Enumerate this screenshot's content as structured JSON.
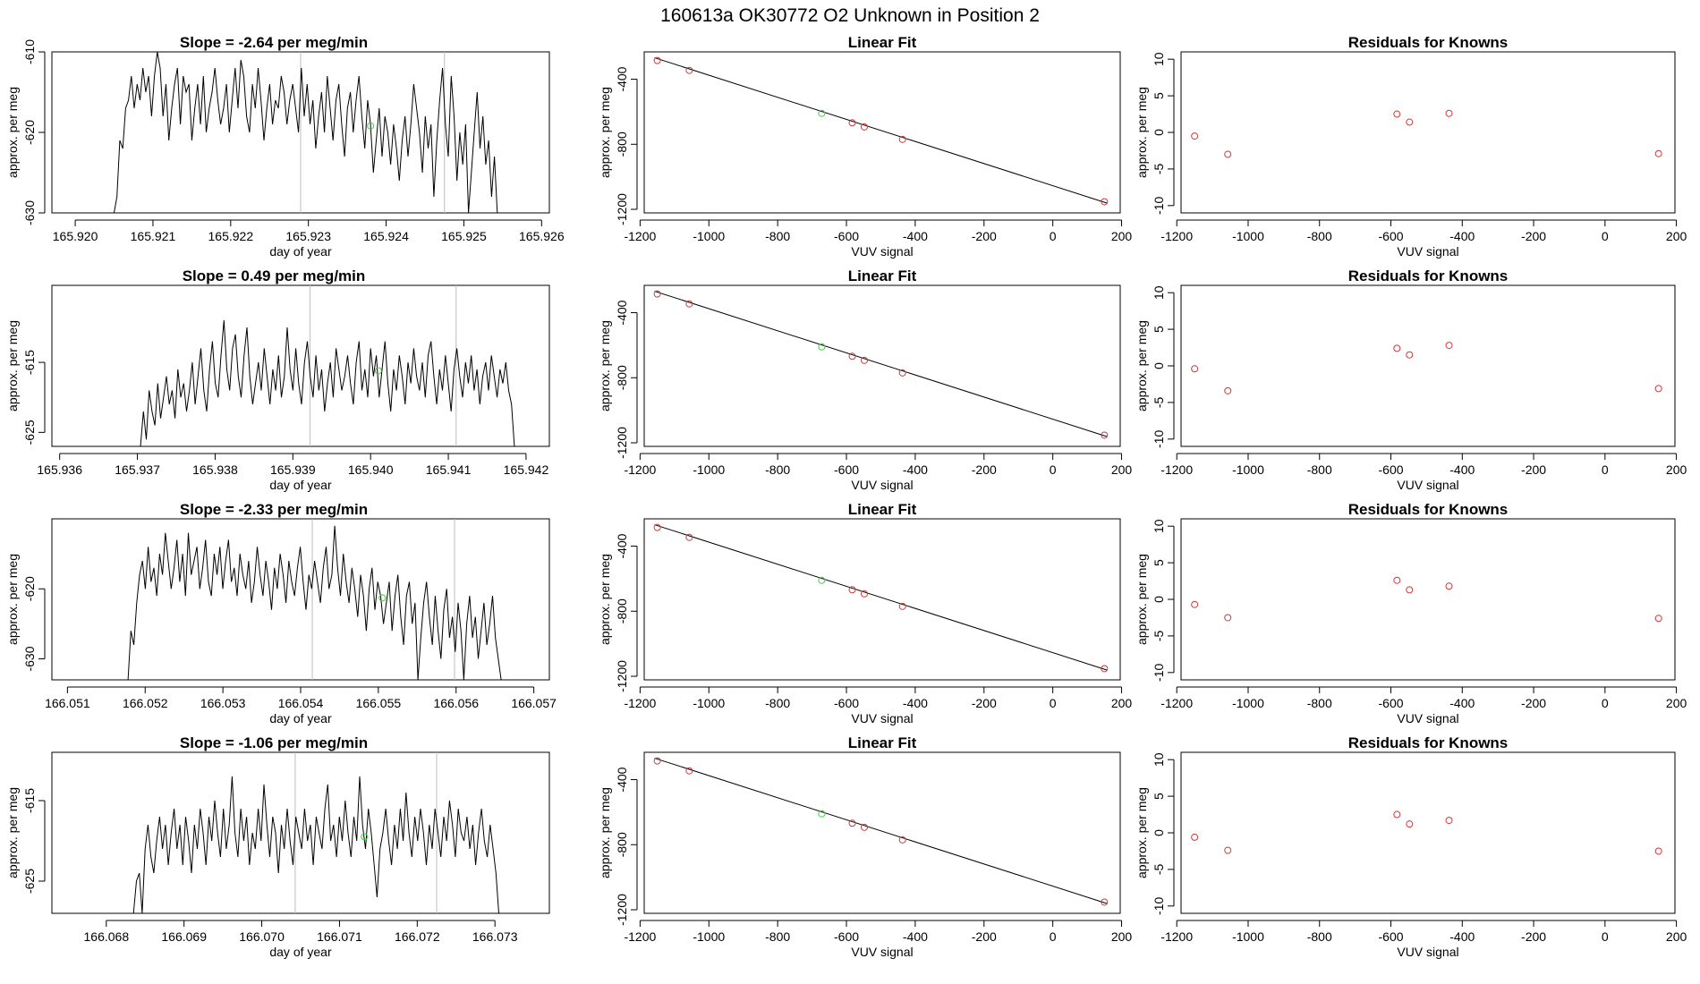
{
  "figure_title": "160613a      OK30772    O2 Unknown in Position  2",
  "colors": {
    "known": "#cd3a3a",
    "unknown": "#3ed03e",
    "trace": "#000000",
    "marker_line": "#bdbdbd"
  },
  "chart_data": [
    {
      "type": "line",
      "title": "Slope =  -2.64  per meg/min",
      "xlabel": "day of year",
      "ylabel": "approx. per meg",
      "xlim": [
        165.9197,
        165.9261
      ],
      "ylim": [
        -630,
        -610
      ],
      "xticks": [
        165.92,
        165.921,
        165.922,
        165.923,
        165.924,
        165.925,
        165.926
      ],
      "xtick_labels": [
        "165.920",
        "165.921",
        "165.922",
        "165.923",
        "165.924",
        "165.925",
        "165.926"
      ],
      "yticks": [
        -630,
        -620,
        -610
      ],
      "ytick_labels": [
        "-630",
        "-620",
        "-610"
      ],
      "trace_x": [
        165.9205,
        165.92543
      ],
      "trace_y": [
        -630,
        -628,
        -621,
        -622,
        -617,
        -616,
        -613,
        -617,
        -614,
        -616,
        -612,
        -615,
        -613,
        -618,
        -613,
        -610,
        -612,
        -618,
        -614,
        -621,
        -617,
        -614,
        -612,
        -619,
        -613,
        -615,
        -614,
        -621,
        -617,
        -614,
        -619,
        -613,
        -620,
        -617,
        -615,
        -612,
        -616,
        -619,
        -617,
        -614,
        -620,
        -616,
        -612,
        -617,
        -611,
        -613,
        -618,
        -620,
        -614,
        -617,
        -612,
        -616,
        -621,
        -617,
        -614,
        -619,
        -616,
        -617,
        -613,
        -615,
        -619,
        -616,
        -614,
        -617,
        -620,
        -612,
        -618,
        -614,
        -619,
        -616,
        -622,
        -618,
        -615,
        -620,
        -613,
        -617,
        -621,
        -616,
        -614,
        -619,
        -623,
        -617,
        -615,
        -620,
        -616,
        -613,
        -618,
        -622,
        -616,
        -619,
        -625,
        -621,
        -617,
        -623,
        -618,
        -620,
        -624,
        -619,
        -622,
        -626,
        -621,
        -618,
        -623,
        -619,
        -614,
        -617,
        -620,
        -625,
        -618,
        -622,
        -619,
        -628,
        -621,
        -616,
        -612,
        -619,
        -623,
        -613,
        -618,
        -626,
        -620,
        -624,
        -619,
        -630,
        -625,
        -620,
        -615,
        -622,
        -618,
        -624,
        -621,
        -628,
        -623,
        -630
      ],
      "markers": [
        165.9229,
        165.92475
      ],
      "unknown_point": [
        165.9238,
        -619.2
      ]
    },
    {
      "type": "scatter",
      "title": "Linear Fit",
      "xlabel": "VUV signal",
      "ylabel": "approx. per meg",
      "xlim": [
        -1188,
        196
      ],
      "ylim": [
        -1222,
        -232
      ],
      "xticks": [
        -1200,
        -1000,
        -800,
        -600,
        -400,
        -200,
        0,
        200
      ],
      "xtick_labels": [
        "-1200",
        "-1000",
        "-800",
        "-600",
        "-400",
        "-200",
        "0",
        "200"
      ],
      "yticks": [
        -1200,
        -800,
        -400
      ],
      "ytick_labels": [
        "-1200",
        "-800",
        "-400"
      ],
      "fit_line": {
        "x": [
          -1158,
          158
        ],
        "y": [
          -268,
          -1162
        ]
      },
      "known_points": {
        "x": [
          -1150,
          -1057,
          -583,
          -548,
          -437,
          150
        ],
        "y": [
          -285,
          -346,
          -668,
          -693,
          -770,
          -1153
        ]
      },
      "unknown_point": [
        -672,
        -610
      ]
    },
    {
      "type": "scatter",
      "title": "Residuals for Knowns",
      "xlabel": "VUV signal",
      "ylabel": "approx. per meg",
      "xlim": [
        -1188,
        196
      ],
      "ylim": [
        -11,
        11
      ],
      "xticks": [
        -1200,
        -1000,
        -800,
        -600,
        -400,
        -200,
        0,
        200
      ],
      "xtick_labels": [
        "-1200",
        "-1000",
        "-800",
        "-600",
        "-400",
        "-200",
        "0",
        "200"
      ],
      "yticks": [
        -10,
        -5,
        0,
        5,
        10
      ],
      "ytick_labels": [
        "-10",
        "-5",
        "0",
        "5",
        "10"
      ],
      "points": {
        "x": [
          -1150,
          -1057,
          -583,
          -548,
          -437,
          150
        ],
        "y": [
          -0.5,
          -3.0,
          2.5,
          1.4,
          2.6,
          -2.9
        ]
      }
    },
    {
      "type": "line",
      "title": "Slope =  0.49  per meg/min",
      "xlabel": "day of year",
      "ylabel": "approx. per meg",
      "xlim": [
        165.9359,
        165.9423
      ],
      "ylim": [
        -627,
        -604
      ],
      "xticks": [
        165.936,
        165.937,
        165.938,
        165.939,
        165.94,
        165.941,
        165.942
      ],
      "xtick_labels": [
        "165.936",
        "165.937",
        "165.938",
        "165.939",
        "165.940",
        "165.941",
        "165.942"
      ],
      "yticks": [
        -625,
        -615
      ],
      "ytick_labels": [
        "-625",
        "-615"
      ],
      "trace_x": [
        165.93704,
        165.94185
      ],
      "trace_y": [
        -627,
        -622,
        -626,
        -619,
        -622,
        -624,
        -618,
        -623,
        -620,
        -617,
        -621,
        -619,
        -623,
        -616,
        -620,
        -618,
        -622,
        -619,
        -615,
        -621,
        -617,
        -613,
        -619,
        -622,
        -616,
        -612,
        -618,
        -620,
        -614,
        -609,
        -616,
        -619,
        -613,
        -611,
        -617,
        -620,
        -614,
        -610,
        -617,
        -621,
        -618,
        -615,
        -619,
        -613,
        -617,
        -621,
        -616,
        -619,
        -614,
        -620,
        -617,
        -610,
        -616,
        -619,
        -613,
        -618,
        -621,
        -615,
        -612,
        -617,
        -620,
        -614,
        -619,
        -616,
        -622,
        -618,
        -615,
        -620,
        -613,
        -616,
        -619,
        -617,
        -614,
        -618,
        -621,
        -615,
        -612,
        -619,
        -616,
        -620,
        -613,
        -617,
        -614,
        -620,
        -616,
        -612,
        -618,
        -622,
        -616,
        -619,
        -614,
        -617,
        -621,
        -615,
        -618,
        -613,
        -617,
        -619,
        -615,
        -620,
        -614,
        -612,
        -617,
        -621,
        -616,
        -619,
        -614,
        -618,
        -622,
        -616,
        -613,
        -617,
        -620,
        -615,
        -618,
        -614,
        -619,
        -616,
        -621,
        -617,
        -615,
        -619,
        -614,
        -617,
        -620,
        -616,
        -618,
        -615,
        -619,
        -621,
        -627
      ],
      "markers": [
        165.93922,
        165.9411
      ],
      "unknown_point": [
        165.9401,
        -616.2
      ]
    },
    {
      "type": "scatter",
      "title": "Linear Fit",
      "xlabel": "VUV signal",
      "ylabel": "approx. per meg",
      "xlim": [
        -1188,
        196
      ],
      "ylim": [
        -1222,
        -232
      ],
      "xticks": [
        -1200,
        -1000,
        -800,
        -600,
        -400,
        -200,
        0,
        200
      ],
      "xtick_labels": [
        "-1200",
        "-1000",
        "-800",
        "-600",
        "-400",
        "-200",
        "0",
        "200"
      ],
      "yticks": [
        -1200,
        -800,
        -400
      ],
      "ytick_labels": [
        "-1200",
        "-800",
        "-400"
      ],
      "fit_line": {
        "x": [
          -1158,
          158
        ],
        "y": [
          -268,
          -1162
        ]
      },
      "known_points": {
        "x": [
          -1150,
          -1057,
          -583,
          -548,
          -437,
          150
        ],
        "y": [
          -285,
          -346,
          -668,
          -693,
          -770,
          -1153
        ]
      },
      "unknown_point": [
        -672,
        -610
      ]
    },
    {
      "type": "scatter",
      "title": "Residuals for Knowns",
      "xlabel": "VUV signal",
      "ylabel": "approx. per meg",
      "xlim": [
        -1188,
        196
      ],
      "ylim": [
        -11,
        11
      ],
      "xticks": [
        -1200,
        -1000,
        -800,
        -600,
        -400,
        -200,
        0,
        200
      ],
      "xtick_labels": [
        "-1200",
        "-1000",
        "-800",
        "-600",
        "-400",
        "-200",
        "0",
        "200"
      ],
      "yticks": [
        -10,
        -5,
        0,
        5,
        10
      ],
      "ytick_labels": [
        "-10",
        "-5",
        "0",
        "5",
        "10"
      ],
      "points": {
        "x": [
          -1150,
          -1057,
          -583,
          -548,
          -437,
          150
        ],
        "y": [
          -0.4,
          -3.4,
          2.4,
          1.5,
          2.8,
          -3.1
        ]
      }
    },
    {
      "type": "line",
      "title": "Slope =  -2.33  per meg/min",
      "xlabel": "day of year",
      "ylabel": "approx. per meg",
      "xlim": [
        166.0508,
        166.0572
      ],
      "ylim": [
        -633,
        -610
      ],
      "xticks": [
        166.051,
        166.052,
        166.053,
        166.054,
        166.055,
        166.056,
        166.057
      ],
      "xtick_labels": [
        "166.051",
        "166.052",
        "166.053",
        "166.054",
        "166.055",
        "166.056",
        "166.057"
      ],
      "yticks": [
        -630,
        -620
      ],
      "ytick_labels": [
        "-630",
        "-620"
      ],
      "trace_x": [
        166.05178,
        166.05658
      ],
      "trace_y": [
        -633,
        -626,
        -628,
        -622,
        -618,
        -616,
        -620,
        -614,
        -619,
        -617,
        -621,
        -615,
        -618,
        -612,
        -616,
        -620,
        -617,
        -613,
        -619,
        -615,
        -621,
        -612,
        -618,
        -616,
        -614,
        -620,
        -617,
        -613,
        -619,
        -621,
        -615,
        -618,
        -614,
        -620,
        -616,
        -613,
        -619,
        -617,
        -621,
        -615,
        -618,
        -620,
        -616,
        -622,
        -619,
        -614,
        -618,
        -621,
        -616,
        -619,
        -623,
        -617,
        -620,
        -615,
        -618,
        -622,
        -616,
        -619,
        -621,
        -617,
        -614,
        -619,
        -623,
        -618,
        -620,
        -616,
        -619,
        -622,
        -617,
        -614,
        -620,
        -618,
        -611,
        -617,
        -621,
        -615,
        -619,
        -622,
        -617,
        -620,
        -624,
        -618,
        -621,
        -626,
        -620,
        -617,
        -623,
        -619,
        -621,
        -625,
        -622,
        -619,
        -626,
        -621,
        -618,
        -624,
        -628,
        -621,
        -619,
        -625,
        -622,
        -633,
        -627,
        -622,
        -619,
        -624,
        -628,
        -621,
        -626,
        -630,
        -623,
        -620,
        -627,
        -624,
        -629,
        -622,
        -626,
        -633,
        -625,
        -621,
        -627,
        -624,
        -630,
        -626,
        -622,
        -628,
        -625,
        -621,
        -627,
        -630,
        -633
      ],
      "markers": [
        166.05415,
        166.05598
      ],
      "unknown_point": [
        166.05505,
        -621.3
      ]
    },
    {
      "type": "scatter",
      "title": "Linear Fit",
      "xlabel": "VUV signal",
      "ylabel": "approx. per meg",
      "xlim": [
        -1188,
        196
      ],
      "ylim": [
        -1222,
        -232
      ],
      "xticks": [
        -1200,
        -1000,
        -800,
        -600,
        -400,
        -200,
        0,
        200
      ],
      "xtick_labels": [
        "-1200",
        "-1000",
        "-800",
        "-600",
        "-400",
        "-200",
        "0",
        "200"
      ],
      "yticks": [
        -1200,
        -800,
        -400
      ],
      "ytick_labels": [
        "-1200",
        "-800",
        "-400"
      ],
      "fit_line": {
        "x": [
          -1158,
          158
        ],
        "y": [
          -268,
          -1162
        ]
      },
      "known_points": {
        "x": [
          -1150,
          -1057,
          -583,
          -548,
          -437,
          150
        ],
        "y": [
          -285,
          -346,
          -668,
          -693,
          -770,
          -1153
        ]
      },
      "unknown_point": [
        -672,
        -610
      ]
    },
    {
      "type": "scatter",
      "title": "Residuals for Knowns",
      "xlabel": "VUV signal",
      "ylabel": "approx. per meg",
      "xlim": [
        -1188,
        196
      ],
      "ylim": [
        -11,
        11
      ],
      "xticks": [
        -1200,
        -1000,
        -800,
        -600,
        -400,
        -200,
        0,
        200
      ],
      "xtick_labels": [
        "-1200",
        "-1000",
        "-800",
        "-600",
        "-400",
        "-200",
        "0",
        "200"
      ],
      "yticks": [
        -10,
        -5,
        0,
        5,
        10
      ],
      "ytick_labels": [
        "-10",
        "-5",
        "0",
        "5",
        "10"
      ],
      "points": {
        "x": [
          -1150,
          -1057,
          -583,
          -548,
          -437,
          150
        ],
        "y": [
          -0.7,
          -2.5,
          2.6,
          1.3,
          1.8,
          -2.6
        ]
      }
    },
    {
      "type": "line",
      "title": "Slope =  -1.06  per meg/min",
      "xlabel": "day of year",
      "ylabel": "approx. per meg",
      "xlim": [
        166.0673,
        166.0737
      ],
      "ylim": [
        -629,
        -609
      ],
      "xticks": [
        166.068,
        166.069,
        166.07,
        166.071,
        166.072,
        166.073
      ],
      "xtick_labels": [
        "166.068",
        "166.069",
        "166.070",
        "166.071",
        "166.072",
        "166.073"
      ],
      "yticks": [
        -625,
        -615
      ],
      "ytick_labels": [
        "-625",
        "-615"
      ],
      "trace_x": [
        166.06835,
        166.07305
      ],
      "trace_y": [
        -629,
        -625,
        -624,
        -629,
        -621,
        -618,
        -622,
        -624,
        -620,
        -617,
        -621,
        -618,
        -623,
        -619,
        -616,
        -621,
        -618,
        -623,
        -617,
        -620,
        -624,
        -618,
        -621,
        -616,
        -619,
        -623,
        -617,
        -620,
        -615,
        -619,
        -622,
        -616,
        -621,
        -618,
        -612,
        -619,
        -622,
        -616,
        -620,
        -617,
        -623,
        -619,
        -621,
        -616,
        -620,
        -613,
        -618,
        -622,
        -617,
        -619,
        -624,
        -618,
        -621,
        -616,
        -620,
        -623,
        -617,
        -619,
        -621,
        -616,
        -620,
        -618,
        -623,
        -617,
        -619,
        -621,
        -616,
        -613,
        -620,
        -618,
        -622,
        -617,
        -620,
        -615,
        -619,
        -622,
        -617,
        -620,
        -612,
        -618,
        -621,
        -616,
        -619,
        -623,
        -627,
        -621,
        -619,
        -616,
        -620,
        -623,
        -618,
        -621,
        -616,
        -620,
        -614,
        -619,
        -622,
        -617,
        -620,
        -616,
        -619,
        -623,
        -618,
        -621,
        -616,
        -619,
        -622,
        -617,
        -620,
        -615,
        -618,
        -622,
        -616,
        -619,
        -620,
        -617,
        -621,
        -618,
        -623,
        -619,
        -616,
        -620,
        -622,
        -618,
        -621,
        -624,
        -629
      ],
      "markers": [
        166.07043,
        166.07225
      ],
      "unknown_point": [
        166.07132,
        -619.5
      ]
    },
    {
      "type": "scatter",
      "title": "Linear Fit",
      "xlabel": "VUV signal",
      "ylabel": "approx. per meg",
      "xlim": [
        -1188,
        196
      ],
      "ylim": [
        -1222,
        -232
      ],
      "xticks": [
        -1200,
        -1000,
        -800,
        -600,
        -400,
        -200,
        0,
        200
      ],
      "xtick_labels": [
        "-1200",
        "-1000",
        "-800",
        "-600",
        "-400",
        "-200",
        "0",
        "200"
      ],
      "yticks": [
        -1200,
        -800,
        -400
      ],
      "ytick_labels": [
        "-1200",
        "-800",
        "-400"
      ],
      "fit_line": {
        "x": [
          -1158,
          158
        ],
        "y": [
          -268,
          -1162
        ]
      },
      "known_points": {
        "x": [
          -1150,
          -1057,
          -583,
          -548,
          -437,
          150
        ],
        "y": [
          -285,
          -346,
          -668,
          -693,
          -770,
          -1153
        ]
      },
      "unknown_point": [
        -672,
        -610
      ]
    },
    {
      "type": "scatter",
      "title": "Residuals for Knowns",
      "xlabel": "VUV signal",
      "ylabel": "approx. per meg",
      "xlim": [
        -1188,
        196
      ],
      "ylim": [
        -11,
        11
      ],
      "xticks": [
        -1200,
        -1000,
        -800,
        -600,
        -400,
        -200,
        0,
        200
      ],
      "xtick_labels": [
        "-1200",
        "-1000",
        "-800",
        "-600",
        "-400",
        "-200",
        "0",
        "200"
      ],
      "yticks": [
        -10,
        -5,
        0,
        5,
        10
      ],
      "ytick_labels": [
        "-10",
        "-5",
        "0",
        "5",
        "10"
      ],
      "points": {
        "x": [
          -1150,
          -1057,
          -583,
          -548,
          -437,
          150
        ],
        "y": [
          -0.6,
          -2.4,
          2.5,
          1.2,
          1.7,
          -2.5
        ]
      }
    }
  ]
}
